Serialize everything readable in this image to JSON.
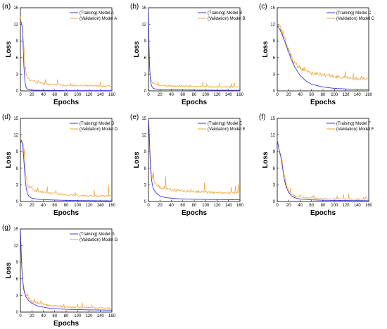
{
  "chart_data": [
    {
      "panel": "(a)",
      "type": "line",
      "xlabel": "Epochs",
      "ylabel": "Loss",
      "xlim": [
        0,
        160
      ],
      "ylim": [
        0,
        15
      ],
      "xticks": [
        0,
        20,
        40,
        60,
        80,
        100,
        120,
        140,
        160
      ],
      "yticks": [
        0,
        3,
        6,
        9,
        12,
        15
      ],
      "series": [
        {
          "name": "(Training) Model A",
          "color": "#3a3ae0",
          "x": [
            0,
            1,
            2,
            3,
            4,
            5,
            6,
            8,
            10,
            12,
            15,
            20,
            30,
            50,
            80,
            120,
            160
          ],
          "y": [
            12.6,
            12.4,
            12.2,
            11.6,
            10.0,
            7.5,
            4.6,
            1.6,
            0.6,
            0.3,
            0.2,
            0.15,
            0.1,
            0.08,
            0.06,
            0.05,
            0.05
          ]
        },
        {
          "name": "(Validation) Model A",
          "color": "#f0a030",
          "x": [
            0,
            1,
            2,
            3,
            4,
            5,
            6,
            8,
            10,
            12,
            15,
            20,
            30,
            50,
            80,
            120,
            160
          ],
          "y": [
            13.5,
            12.6,
            12.2,
            11.8,
            11.0,
            9.5,
            7.8,
            4.5,
            3.2,
            2.6,
            2.2,
            1.8,
            1.5,
            1.2,
            1.0,
            0.9,
            0.9
          ]
        }
      ]
    },
    {
      "panel": "(b)",
      "type": "line",
      "xlabel": "Epochs",
      "ylabel": "Loss",
      "xlim": [
        0,
        160
      ],
      "ylim": [
        0,
        15
      ],
      "xticks": [
        0,
        20,
        40,
        60,
        80,
        100,
        120,
        140,
        160
      ],
      "yticks": [
        0,
        3,
        6,
        9,
        12,
        15
      ],
      "series": [
        {
          "name": "(Training) Model B",
          "color": "#3a3ae0",
          "x": [
            0,
            1,
            2,
            3,
            4,
            6,
            8,
            10,
            15,
            20,
            40,
            80,
            120,
            160
          ],
          "y": [
            15.0,
            8.0,
            4.5,
            2.5,
            1.5,
            0.8,
            0.5,
            0.4,
            0.3,
            0.25,
            0.2,
            0.15,
            0.12,
            0.1
          ]
        },
        {
          "name": "(Validation) Model B",
          "color": "#f0a030",
          "x": [
            0,
            1,
            2,
            3,
            4,
            6,
            8,
            10,
            15,
            20,
            40,
            80,
            120,
            160
          ],
          "y": [
            12.5,
            6.5,
            3.8,
            2.6,
            2.0,
            1.6,
            1.4,
            1.3,
            1.1,
            1.0,
            0.9,
            0.8,
            0.7,
            0.7
          ]
        }
      ]
    },
    {
      "panel": "(c)",
      "type": "line",
      "xlabel": "Epochs",
      "ylabel": "Loss",
      "xlim": [
        0,
        160
      ],
      "ylim": [
        0,
        15
      ],
      "xticks": [
        0,
        20,
        40,
        60,
        80,
        100,
        120,
        140,
        160
      ],
      "yticks": [
        0,
        3,
        6,
        9,
        12,
        15
      ],
      "series": [
        {
          "name": "(Training) Model C",
          "color": "#3a3ae0",
          "x": [
            0,
            5,
            10,
            15,
            20,
            25,
            30,
            40,
            50,
            60,
            80,
            100,
            120,
            140,
            160
          ],
          "y": [
            11.8,
            11.0,
            9.8,
            8.4,
            7.0,
            5.6,
            4.4,
            2.8,
            1.8,
            1.2,
            0.7,
            0.45,
            0.35,
            0.28,
            0.25
          ]
        },
        {
          "name": "(Validation) Model C",
          "color": "#f0a030",
          "x": [
            0,
            5,
            10,
            15,
            20,
            25,
            30,
            40,
            50,
            60,
            80,
            100,
            120,
            140,
            160
          ],
          "y": [
            12.0,
            11.2,
            10.0,
            8.7,
            7.3,
            6.0,
            5.0,
            4.0,
            3.5,
            3.2,
            2.9,
            2.6,
            2.4,
            2.2,
            2.1
          ]
        }
      ]
    },
    {
      "panel": "(d)",
      "type": "line",
      "xlabel": "Epochs",
      "ylabel": "Loss",
      "xlim": [
        0,
        160
      ],
      "ylim": [
        0,
        15
      ],
      "xticks": [
        0,
        20,
        40,
        60,
        80,
        100,
        120,
        140,
        160
      ],
      "yticks": [
        0,
        3,
        6,
        9,
        12,
        15
      ],
      "series": [
        {
          "name": "(Training) Model D",
          "color": "#3a3ae0",
          "x": [
            0,
            2,
            4,
            6,
            8,
            10,
            12,
            15,
            20,
            30,
            50,
            80,
            120,
            160
          ],
          "y": [
            10.5,
            11.0,
            10.0,
            7.5,
            4.5,
            2.5,
            1.5,
            0.9,
            0.6,
            0.4,
            0.3,
            0.2,
            0.15,
            0.12
          ]
        },
        {
          "name": "(Validation) Model D",
          "color": "#f0a030",
          "x": [
            0,
            2,
            4,
            6,
            8,
            10,
            12,
            15,
            20,
            30,
            50,
            80,
            120,
            160
          ],
          "y": [
            11.5,
            10.8,
            10.5,
            8.5,
            6.0,
            4.2,
            3.2,
            2.6,
            2.2,
            1.8,
            1.5,
            1.2,
            1.0,
            1.0
          ]
        }
      ]
    },
    {
      "panel": "(e)",
      "type": "line",
      "xlabel": "Epochs",
      "ylabel": "Loss",
      "xlim": [
        0,
        160
      ],
      "ylim": [
        0,
        15
      ],
      "xticks": [
        0,
        20,
        40,
        60,
        80,
        100,
        120,
        140,
        160
      ],
      "yticks": [
        0,
        3,
        6,
        9,
        12,
        15
      ],
      "series": [
        {
          "name": "(Training) Model E",
          "color": "#3a3ae0",
          "x": [
            0,
            1,
            2,
            3,
            4,
            6,
            8,
            10,
            15,
            20,
            30,
            50,
            80,
            120,
            160
          ],
          "y": [
            14.8,
            13.0,
            10.0,
            7.5,
            5.5,
            3.5,
            2.5,
            2.0,
            1.4,
            1.0,
            0.7,
            0.5,
            0.4,
            0.35,
            0.3
          ]
        },
        {
          "name": "(Validation) Model E",
          "color": "#f0a030",
          "x": [
            0,
            1,
            2,
            3,
            4,
            6,
            8,
            10,
            15,
            20,
            30,
            50,
            80,
            120,
            160
          ],
          "y": [
            15.0,
            13.5,
            11.0,
            8.5,
            6.5,
            4.8,
            4.0,
            3.5,
            3.0,
            2.6,
            2.3,
            2.0,
            1.8,
            1.6,
            1.5
          ]
        }
      ]
    },
    {
      "panel": "(f)",
      "type": "line",
      "xlabel": "Epochs",
      "ylabel": "Loss",
      "xlim": [
        0,
        160
      ],
      "ylim": [
        0,
        15
      ],
      "xticks": [
        0,
        20,
        40,
        60,
        80,
        100,
        120,
        140,
        160
      ],
      "yticks": [
        0,
        3,
        6,
        9,
        12,
        15
      ],
      "series": [
        {
          "name": "(Training) Model F",
          "color": "#3a3ae0",
          "x": [
            0,
            2,
            4,
            6,
            8,
            10,
            12,
            15,
            20,
            25,
            30,
            40,
            60,
            80,
            120,
            160
          ],
          "y": [
            11.0,
            10.0,
            9.0,
            8.2,
            7.0,
            5.6,
            4.2,
            2.8,
            1.6,
            1.0,
            0.7,
            0.45,
            0.3,
            0.22,
            0.18,
            0.15
          ]
        },
        {
          "name": "(Validation) Model F",
          "color": "#f0a030",
          "x": [
            0,
            2,
            4,
            6,
            8,
            10,
            12,
            15,
            20,
            25,
            30,
            40,
            60,
            80,
            120,
            160
          ],
          "y": [
            11.2,
            10.2,
            9.2,
            8.4,
            7.4,
            6.0,
            4.6,
            3.2,
            2.0,
            1.3,
            1.0,
            0.8,
            0.6,
            0.5,
            0.45,
            0.4
          ]
        }
      ]
    },
    {
      "panel": "(g)",
      "type": "line",
      "xlabel": "Epochs",
      "ylabel": "Loss",
      "xlim": [
        0,
        160
      ],
      "ylim": [
        0,
        15
      ],
      "xticks": [
        0,
        20,
        40,
        60,
        80,
        100,
        120,
        140,
        160
      ],
      "yticks": [
        0,
        3,
        6,
        9,
        12,
        15
      ],
      "series": [
        {
          "name": "(Training) Model G",
          "color": "#3a3ae0",
          "x": [
            0,
            1,
            2,
            3,
            4,
            6,
            8,
            10,
            15,
            20,
            30,
            50,
            80,
            120,
            160
          ],
          "y": [
            15.0,
            12.0,
            9.0,
            7.0,
            5.5,
            4.0,
            3.2,
            2.7,
            2.0,
            1.6,
            1.1,
            0.7,
            0.5,
            0.4,
            0.35
          ]
        },
        {
          "name": "(Validation) Model G",
          "color": "#f0a030",
          "x": [
            0,
            1,
            2,
            3,
            4,
            6,
            8,
            10,
            15,
            20,
            30,
            50,
            80,
            120,
            160
          ],
          "y": [
            14.5,
            12.5,
            9.5,
            7.5,
            6.0,
            4.5,
            3.6,
            3.1,
            2.4,
            2.0,
            1.6,
            1.2,
            0.9,
            0.8,
            0.7
          ]
        }
      ]
    }
  ]
}
